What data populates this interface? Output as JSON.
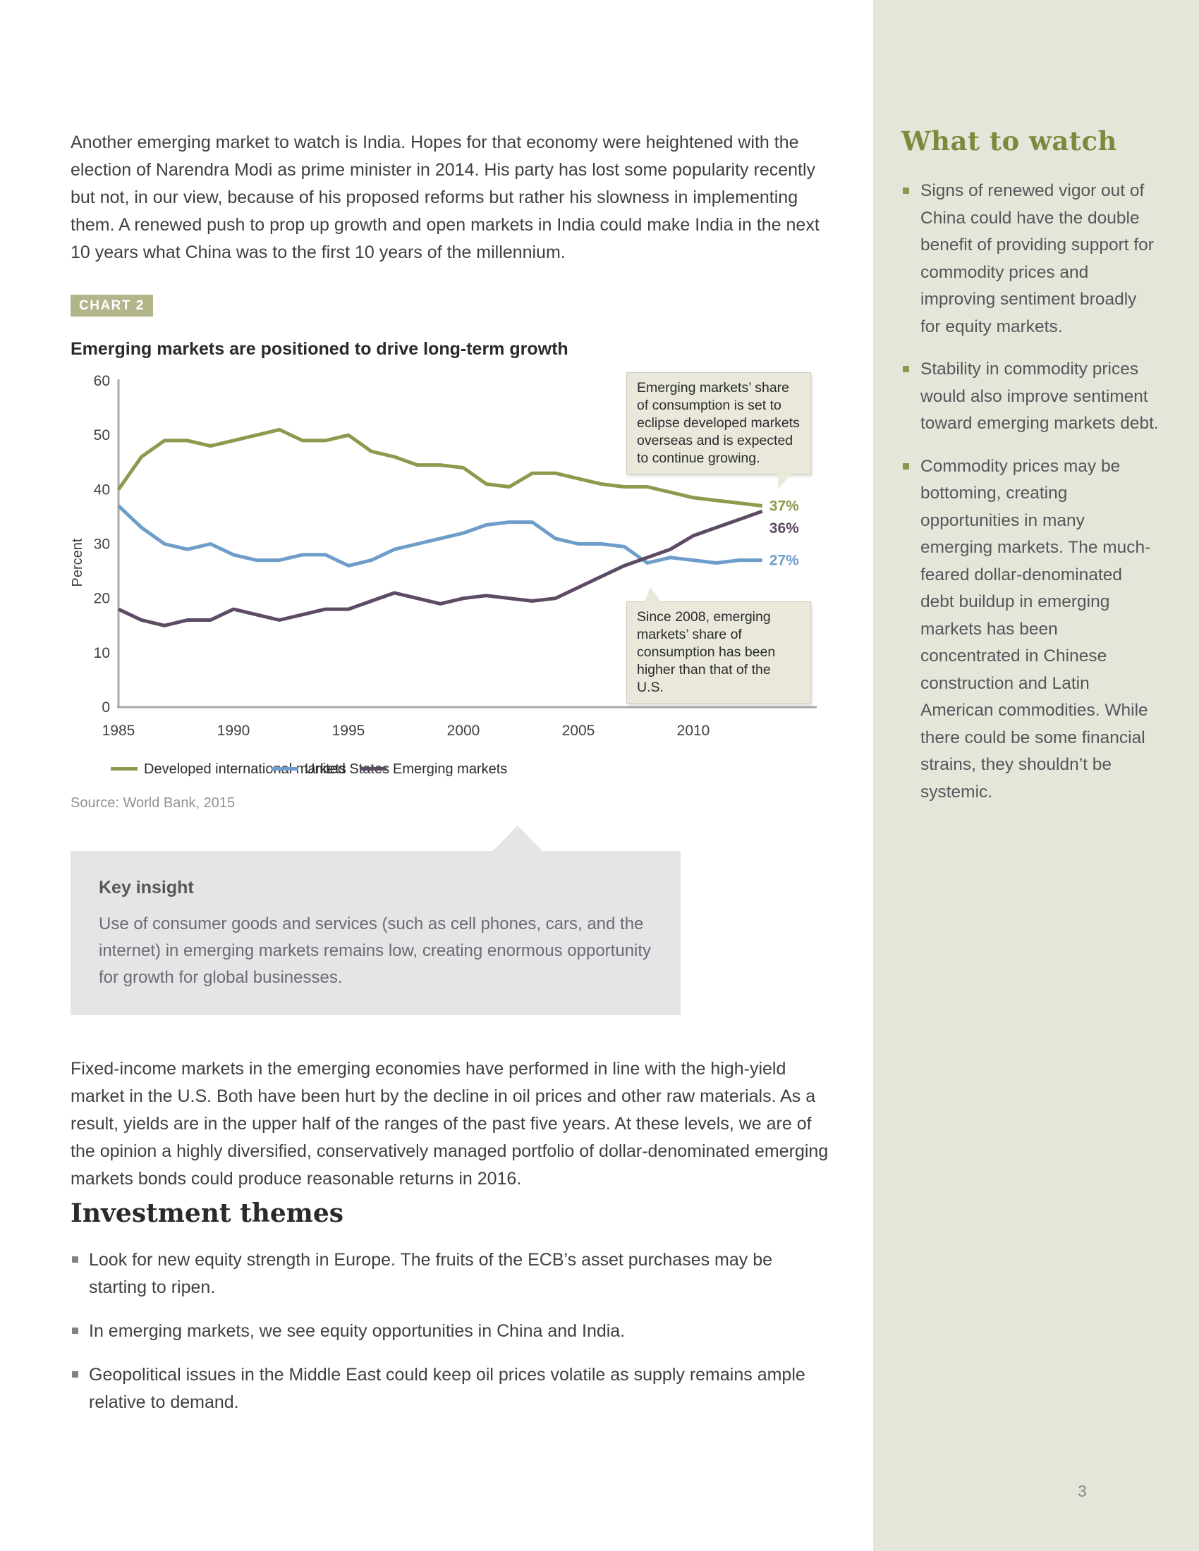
{
  "page": {
    "number": "3"
  },
  "intro_paragraph": "Another emerging market to watch is India. Hopes for that economy were heightened with the election of Narendra Modi as prime minister in 2014. His party has lost some popularity recently but not, in our view, because of his proposed reforms but rather his slowness in implementing them. A renewed push to prop up growth and open markets in India could make India in the next 10 years what China was to the first 10 years of the millennium.",
  "chart": {
    "badge": "CHART 2",
    "title": "Emerging markets are positioned to drive long-term growth",
    "callout_top": "Emerging markets’ share of consumption is set to eclipse developed markets overseas and is expected to continue growing.",
    "callout_bottom": "Since 2008, emerging markets’ share of consumption has been higher than that of the U.S.",
    "source": "Source: World Bank, 2015"
  },
  "chart_data": {
    "type": "line",
    "title": "Emerging markets are positioned to drive long-term growth",
    "xlabel": "",
    "ylabel": "Percent",
    "ylim": [
      0,
      60
    ],
    "yticks": [
      0,
      10,
      20,
      30,
      40,
      50,
      60
    ],
    "xticks": [
      1985,
      1990,
      1995,
      2000,
      2005,
      2010
    ],
    "grid": false,
    "legend_position": "bottom",
    "x": [
      1985,
      1986,
      1987,
      1988,
      1989,
      1990,
      1991,
      1992,
      1993,
      1994,
      1995,
      1996,
      1997,
      1998,
      1999,
      2000,
      2001,
      2002,
      2003,
      2004,
      2005,
      2006,
      2007,
      2008,
      2009,
      2010,
      2011,
      2012,
      2013
    ],
    "series": [
      {
        "name": "Developed international markets",
        "color": "#8c9a4e",
        "end_label": "37%",
        "values": [
          40,
          46,
          49,
          49,
          48,
          49,
          50,
          51,
          49,
          49,
          50,
          47,
          46,
          44.5,
          44.5,
          44,
          41,
          40.5,
          43,
          43,
          42,
          41,
          40.5,
          40.5,
          39.5,
          38.5,
          38,
          37.5,
          37
        ]
      },
      {
        "name": "United States",
        "color": "#6f9dca",
        "end_label": "27%",
        "values": [
          37,
          33,
          30,
          29,
          30,
          28,
          27,
          27,
          28,
          28,
          26,
          27,
          29,
          30,
          31,
          32,
          33.5,
          34,
          34,
          31,
          30,
          30,
          29.5,
          26.5,
          27.5,
          27,
          26.5,
          27,
          27
        ]
      },
      {
        "name": "Emerging markets",
        "color": "#5d4a63",
        "end_label": "36%",
        "values": [
          18,
          16,
          15,
          16,
          16,
          18,
          17,
          16,
          17,
          18,
          18,
          19.5,
          21,
          20,
          19,
          20,
          20.5,
          20,
          19.5,
          20,
          22,
          24,
          26,
          27.5,
          29,
          31.5,
          33,
          34.5,
          36
        ]
      }
    ]
  },
  "key_insight": {
    "title": "Key insight",
    "body": "Use of consumer goods and services (such as cell phones, cars, and the internet) in emerging markets remains low, creating enormous opportunity for growth for global businesses."
  },
  "fixed_income_paragraph": "Fixed-income markets in the emerging economies have performed in line with the high-yield market in the U.S. Both have been hurt by the decline in oil prices and other raw materials. As a result, yields are in the upper half of the ranges of the past five years. At these levels, we are of the opinion a highly diversified, conservatively managed portfolio of dollar-denominated emerging markets bonds could produce reasonable returns in 2016.",
  "investment_themes": {
    "title": "Investment themes",
    "bullets": [
      "Look for new equity strength in Europe. The fruits of the ECB’s asset purchases may be starting to ripen.",
      "In emerging markets, we see equity opportunities in China and India.",
      "Geopolitical issues in the Middle East could keep oil prices volatile as supply remains ample relative to demand."
    ]
  },
  "sidebar": {
    "title": "What to watch",
    "bullets": [
      "Signs of renewed vigor out of China could have the double benefit of providing support for commodity prices and improving sentiment broadly for equity markets.",
      "Stability in commodity prices would also improve sentiment toward emerging markets debt.",
      "Commodity prices may be bottoming, creating opportunities in many emerging markets. The much-feared dollar-denominated debt buildup in emerging markets has been concentrated in Chinese construction and Latin American commodities. While there could be some financial strains, they shouldn’t be systemic."
    ]
  },
  "colors": {
    "sidebar_bg": "#e5e6da",
    "badge_bg": "#b2b489",
    "callout_bg": "#e9e8db",
    "key_insight_bg": "#e5e5e7",
    "axis": "#a7a9ac",
    "sidebar_heading": "#7c8a3e"
  }
}
